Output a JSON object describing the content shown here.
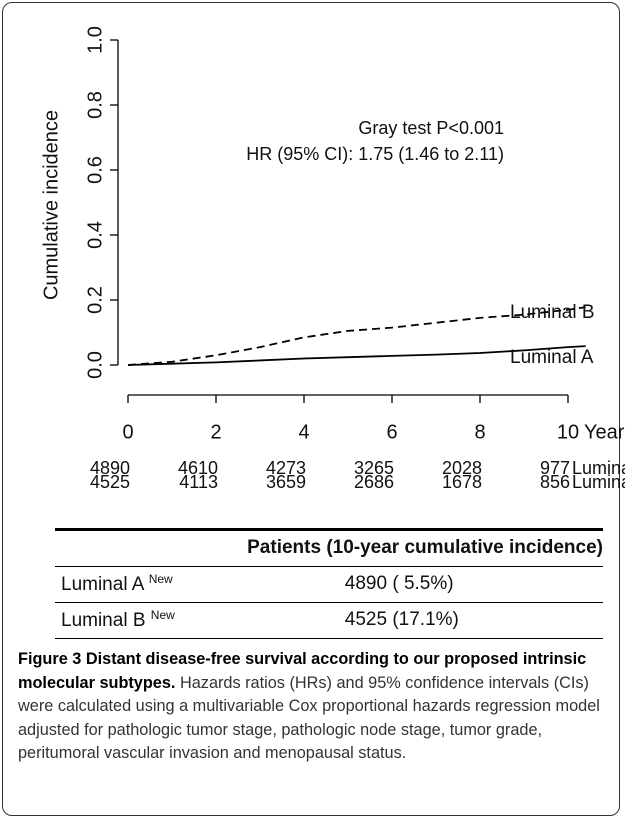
{
  "chart_data": {
    "type": "line",
    "y_label": "Cumulative incidence",
    "x_label": "Years",
    "annotations": [
      "Gray test P<0.001",
      "HR (95% CI): 1.75 (1.46 to 2.11)"
    ],
    "x": [
      0,
      1,
      2,
      3,
      4,
      5,
      6,
      7,
      8,
      9,
      10,
      10.4
    ],
    "series": [
      {
        "name": "Luminal B",
        "color": "#000000",
        "line_style": "dashed",
        "values": [
          0,
          0.01,
          0.03,
          0.055,
          0.085,
          0.105,
          0.115,
          0.13,
          0.145,
          0.155,
          0.17,
          0.178
        ]
      },
      {
        "name": "Luminal A",
        "color": "#000000",
        "line_style": "solid",
        "values": [
          0,
          0.004,
          0.008,
          0.014,
          0.02,
          0.024,
          0.028,
          0.032,
          0.037,
          0.045,
          0.055,
          0.058
        ]
      }
    ],
    "xlim": [
      0,
      10.5
    ],
    "ylim": [
      0,
      1
    ],
    "xticks": [
      0,
      2,
      4,
      6,
      8,
      10
    ],
    "yticks": [
      {
        "value": 0,
        "label": "0.0"
      },
      {
        "value": 0.2,
        "label": "0.2"
      },
      {
        "value": 0.4,
        "label": "0.4"
      },
      {
        "value": 0.6,
        "label": "0.6"
      },
      {
        "value": 0.8,
        "label": "0.8"
      },
      {
        "value": 1,
        "label": "1.0"
      }
    ],
    "risk_table": [
      {
        "name": "Luminal A",
        "values": [
          4890,
          4610,
          4273,
          3265,
          2028,
          977
        ]
      },
      {
        "name": "Luminal B",
        "values": [
          4525,
          4113,
          3659,
          2686,
          1678,
          856
        ]
      }
    ]
  },
  "table": {
    "header": "Patients (10-year cumulative incidence)",
    "rows": [
      {
        "label": "Luminal A",
        "sup": "New",
        "value": "4890 ( 5.5%)"
      },
      {
        "label": "Luminal B",
        "sup": "New",
        "value": "4525 (17.1%)"
      }
    ]
  },
  "caption": {
    "title": "Figure 3 Distant disease-free survival according to our proposed intrinsic molecular subtypes.",
    "text": "Hazards ratios (HRs) and 95% confidence intervals (CIs) were calculated using a multivariable Cox proportional hazards regression model adjusted for pathologic tumor stage, pathologic node stage, tumor grade, peritumoral vascular invasion and menopausal status."
  }
}
